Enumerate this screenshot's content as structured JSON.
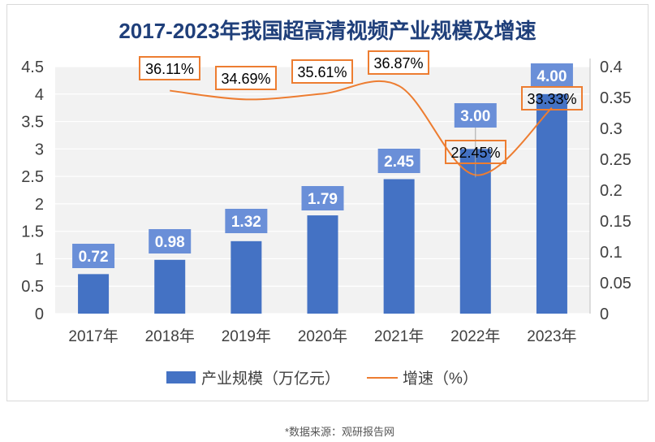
{
  "chart_data": {
    "type": "bar+line",
    "title": "2017-2023年我国超高清视频产业规模及增速",
    "categories": [
      "2017年",
      "2018年",
      "2019年",
      "2020年",
      "2021年",
      "2022年",
      "2023年"
    ],
    "series": [
      {
        "name": "产业规模（万亿元）",
        "type": "bar",
        "axis": "left",
        "color": "#4472C4",
        "values": [
          0.72,
          0.98,
          1.32,
          1.79,
          2.45,
          3.0,
          4.0
        ],
        "labels": [
          "0.72",
          "0.98",
          "1.32",
          "1.79",
          "2.45",
          "3.00",
          "4.00"
        ]
      },
      {
        "name": "增速（%）",
        "type": "line",
        "axis": "right",
        "color": "#ED7D31",
        "smooth": true,
        "values": [
          null,
          0.3611,
          0.3469,
          0.3561,
          0.3687,
          0.2245,
          0.3333
        ],
        "labels": [
          "",
          "36.11%",
          "34.69%",
          "35.61%",
          "36.87%",
          "22.45%",
          "33.33%"
        ]
      }
    ],
    "yleft": {
      "range": [
        0,
        4.5
      ],
      "ticks": [
        "0",
        "0.5",
        "1",
        "1.5",
        "2",
        "2.5",
        "3",
        "3.5",
        "4",
        "4.5"
      ]
    },
    "yright": {
      "range": [
        0,
        0.4
      ],
      "ticks": [
        "0",
        "0.05",
        "0.1",
        "0.15",
        "0.2",
        "0.25",
        "0.3",
        "0.35",
        "0.4"
      ]
    },
    "grid": true,
    "legend": "bottom",
    "plot_background": "#F2F2F2"
  },
  "source": "*数据来源：观研报告网"
}
